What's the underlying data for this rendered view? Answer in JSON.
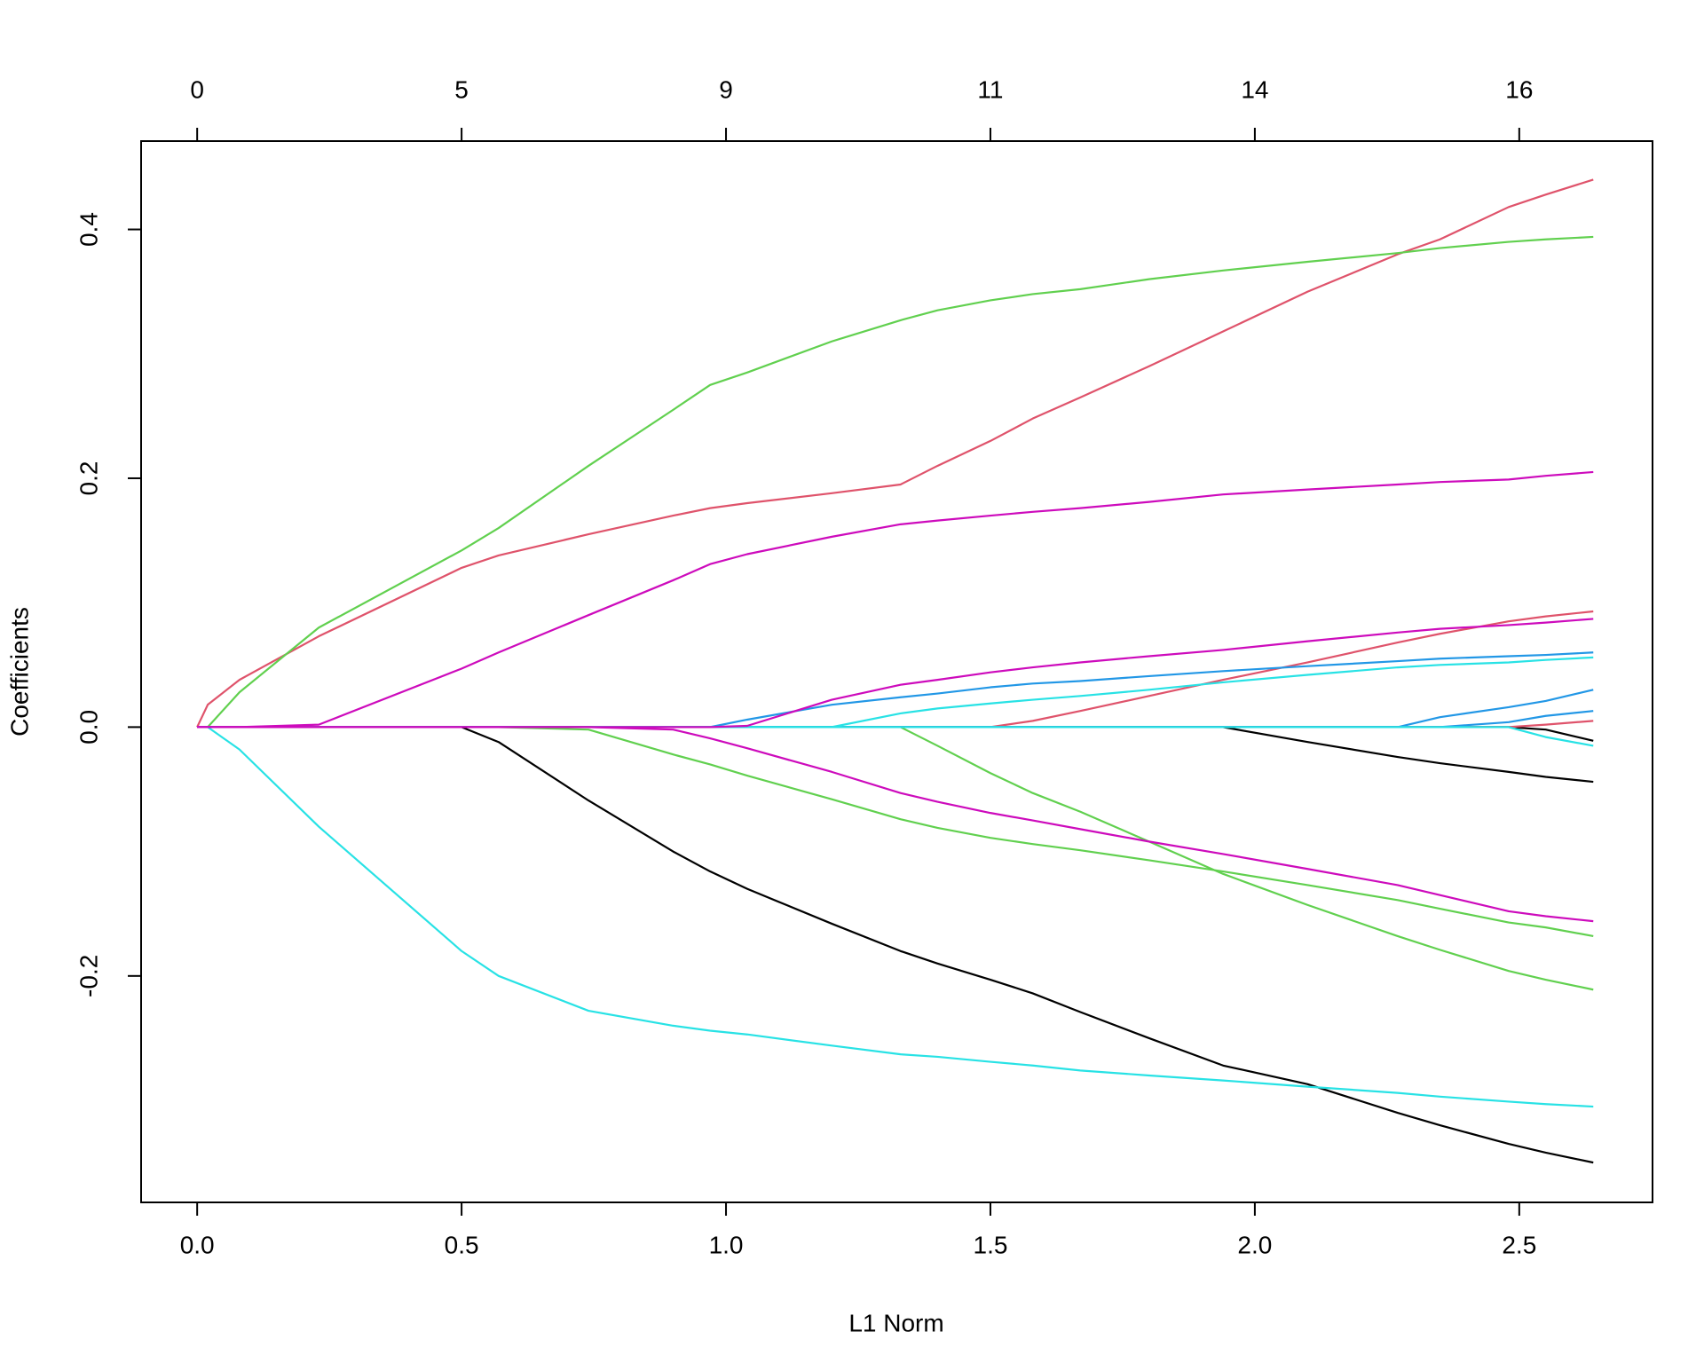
{
  "chart_data": {
    "type": "line",
    "x_label": "L1 Norm",
    "y_label": "Coefficients",
    "xlim": [
      -0.106,
      2.752
    ],
    "ylim": [
      -0.382,
      0.471
    ],
    "xticks": [
      {
        "value": 0,
        "label": "0.0"
      },
      0.5,
      {
        "value": 1,
        "label": "1.0"
      },
      1.5,
      {
        "value": 2,
        "label": "2.0"
      },
      2.5
    ],
    "x2ticks": [
      {
        "value": 0,
        "label": "0"
      },
      {
        "value": 0.5,
        "label": "5"
      },
      {
        "value": 1,
        "label": "9"
      },
      {
        "value": 1.5,
        "label": "11"
      },
      {
        "value": 2,
        "label": "14"
      },
      {
        "value": 2.5,
        "label": "16"
      }
    ],
    "yticks": [
      -0.2,
      {
        "value": 0,
        "label": "0.0"
      },
      0.2,
      0.4
    ],
    "grid": false,
    "x": [
      0,
      0.02,
      0.08,
      0.23,
      0.5,
      0.57,
      0.74,
      0.9,
      0.97,
      1.04,
      1.2,
      1.33,
      1.4,
      1.5,
      1.58,
      1.67,
      1.8,
      1.94,
      2.1,
      2.27,
      2.35,
      2.48,
      2.55,
      2.64
    ],
    "series": [
      {
        "color": "#000000",
        "values": [
          0,
          0,
          0,
          0,
          0,
          -0.012,
          -0.059,
          -0.1,
          -0.116,
          -0.13,
          -0.158,
          -0.18,
          -0.19,
          -0.203,
          -0.214,
          -0.229,
          -0.25,
          -0.272,
          -0.287,
          -0.31,
          -0.32,
          -0.335,
          -0.342,
          -0.35
        ]
      },
      {
        "color": "#000000",
        "values": [
          0,
          0,
          0,
          0,
          0,
          0,
          0,
          0,
          0,
          0,
          0,
          0,
          0,
          0,
          0,
          0,
          0,
          0,
          -0.012,
          -0.024,
          -0.029,
          -0.036,
          -0.04,
          -0.044
        ]
      },
      {
        "color": "#000000",
        "values": [
          0,
          0,
          0,
          0,
          0,
          0,
          0,
          0,
          0,
          0,
          0,
          0,
          0,
          0,
          0,
          0,
          0,
          0,
          0,
          0,
          0,
          0,
          -0.002,
          -0.011
        ]
      },
      {
        "color": "#DF536B",
        "values": [
          0,
          0.018,
          0.038,
          0.073,
          0.128,
          0.138,
          0.155,
          0.17,
          0.176,
          0.18,
          0.188,
          0.195,
          0.21,
          0.23,
          0.248,
          0.265,
          0.29,
          0.318,
          0.35,
          0.38,
          0.392,
          0.418,
          0.428,
          0.44
        ]
      },
      {
        "color": "#DF536B",
        "values": [
          0,
          0,
          0,
          0,
          0,
          0,
          0,
          0,
          0,
          0,
          0,
          0,
          0,
          0,
          0.005,
          0.013,
          0.025,
          0.038,
          0.052,
          0.068,
          0.075,
          0.085,
          0.089,
          0.093
        ]
      },
      {
        "color": "#DF536B",
        "values": [
          0,
          0,
          0,
          0,
          0,
          0,
          0,
          0,
          0,
          0,
          0,
          0,
          0,
          0,
          0,
          0,
          0,
          0,
          0,
          0,
          0,
          0,
          0.002,
          0.005
        ]
      },
      {
        "color": "#61D04F",
        "values": [
          0,
          0,
          0.028,
          0.08,
          0.142,
          0.16,
          0.21,
          0.255,
          0.275,
          0.285,
          0.31,
          0.327,
          0.335,
          0.343,
          0.348,
          0.352,
          0.36,
          0.367,
          0.374,
          0.381,
          0.385,
          0.39,
          0.392,
          0.394
        ]
      },
      {
        "color": "#61D04F",
        "values": [
          0,
          0,
          0,
          0,
          0,
          0,
          -0.002,
          -0.022,
          -0.03,
          -0.039,
          -0.058,
          -0.074,
          -0.081,
          -0.089,
          -0.094,
          -0.099,
          -0.107,
          -0.116,
          -0.127,
          -0.139,
          -0.146,
          -0.157,
          -0.161,
          -0.168
        ]
      },
      {
        "color": "#61D04F",
        "values": [
          0,
          0,
          0,
          0,
          0,
          0,
          0,
          0,
          0,
          0,
          0,
          0,
          -0.015,
          -0.037,
          -0.053,
          -0.068,
          -0.092,
          -0.118,
          -0.143,
          -0.168,
          -0.179,
          -0.196,
          -0.203,
          -0.211
        ]
      },
      {
        "color": "#2297E6",
        "values": [
          0,
          0,
          0,
          0,
          0,
          0,
          0,
          0,
          0,
          0.006,
          0.018,
          0.024,
          0.027,
          0.032,
          0.035,
          0.037,
          0.041,
          0.045,
          0.049,
          0.053,
          0.055,
          0.057,
          0.058,
          0.06
        ]
      },
      {
        "color": "#2297E6",
        "values": [
          0,
          0,
          0,
          0,
          0,
          0,
          0,
          0,
          0,
          0,
          0,
          0,
          0,
          0,
          0,
          0,
          0,
          0,
          0,
          0,
          0.008,
          0.016,
          0.021,
          0.03
        ]
      },
      {
        "color": "#2297E6",
        "values": [
          0,
          0,
          0,
          0,
          0,
          0,
          0,
          0,
          0,
          0,
          0,
          0,
          0,
          0,
          0,
          0,
          0,
          0,
          0,
          0,
          0,
          0.004,
          0.009,
          0.013
        ]
      },
      {
        "color": "#28E2E5",
        "values": [
          0,
          0,
          -0.018,
          -0.08,
          -0.18,
          -0.2,
          -0.228,
          -0.24,
          -0.244,
          -0.247,
          -0.256,
          -0.263,
          -0.265,
          -0.269,
          -0.272,
          -0.276,
          -0.28,
          -0.284,
          -0.289,
          -0.294,
          -0.297,
          -0.301,
          -0.303,
          -0.305
        ]
      },
      {
        "color": "#28E2E5",
        "values": [
          0,
          0,
          0,
          0,
          0,
          0,
          0,
          0,
          0,
          0,
          0,
          0.011,
          0.015,
          0.019,
          0.022,
          0.025,
          0.03,
          0.036,
          0.042,
          0.048,
          0.05,
          0.052,
          0.054,
          0.056
        ]
      },
      {
        "color": "#28E2E5",
        "values": [
          0,
          0,
          0,
          0,
          0,
          0,
          0,
          0,
          0,
          0,
          0,
          0,
          0,
          0,
          0,
          0,
          0,
          0,
          0,
          0,
          0,
          0,
          -0.008,
          -0.015
        ]
      },
      {
        "color": "#CD0BBC",
        "values": [
          0,
          0,
          0,
          0.002,
          0.047,
          0.06,
          0.09,
          0.118,
          0.131,
          0.139,
          0.153,
          0.163,
          0.166,
          0.17,
          0.173,
          0.176,
          0.181,
          0.187,
          0.191,
          0.195,
          0.197,
          0.199,
          0.202,
          0.205
        ]
      },
      {
        "color": "#CD0BBC",
        "values": [
          0,
          0,
          0,
          0,
          0,
          0,
          0,
          0,
          0,
          0.001,
          0.022,
          0.034,
          0.038,
          0.044,
          0.048,
          0.052,
          0.057,
          0.062,
          0.069,
          0.076,
          0.079,
          0.082,
          0.084,
          0.087
        ]
      },
      {
        "color": "#CD0BBC",
        "values": [
          0,
          0,
          0,
          0,
          0,
          0,
          0,
          -0.002,
          -0.009,
          -0.017,
          -0.036,
          -0.053,
          -0.06,
          -0.069,
          -0.075,
          -0.082,
          -0.092,
          -0.102,
          -0.114,
          -0.127,
          -0.135,
          -0.148,
          -0.152,
          -0.156
        ]
      }
    ]
  }
}
